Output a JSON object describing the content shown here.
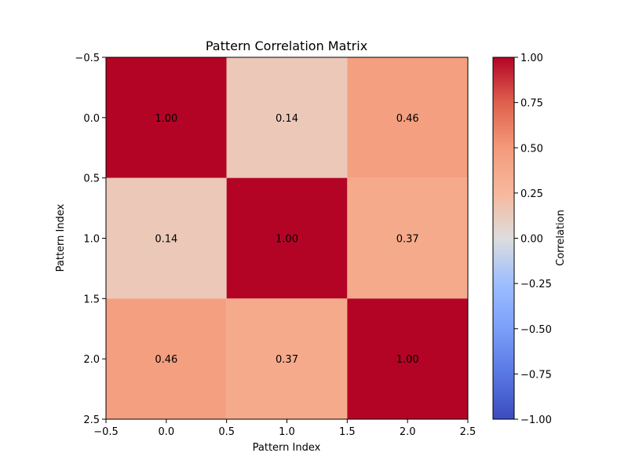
{
  "chart_data": {
    "type": "heatmap",
    "title": "Pattern Correlation Matrix",
    "xlabel": "Pattern Index",
    "ylabel": "Pattern Index",
    "colorbar_label": "Correlation",
    "colormap": "coolwarm",
    "vmin": -1.0,
    "vmax": 1.0,
    "matrix": [
      [
        1.0,
        0.14,
        0.46
      ],
      [
        0.14,
        1.0,
        0.37
      ],
      [
        0.46,
        0.37,
        1.0
      ]
    ],
    "cell_labels": [
      [
        "1.00",
        "0.14",
        "0.46"
      ],
      [
        "0.14",
        "1.00",
        "0.37"
      ],
      [
        "0.46",
        "0.37",
        "1.00"
      ]
    ],
    "xlim": [
      -0.5,
      2.5
    ],
    "ylim": [
      2.5,
      -0.5
    ],
    "xticks": [
      -0.5,
      0.0,
      0.5,
      1.0,
      1.5,
      2.0,
      2.5
    ],
    "xtick_labels": [
      "−0.5",
      "0.0",
      "0.5",
      "1.0",
      "1.5",
      "2.0",
      "2.5"
    ],
    "yticks": [
      -0.5,
      0.0,
      0.5,
      1.0,
      1.5,
      2.0,
      2.5
    ],
    "ytick_labels": [
      "−0.5",
      "0.0",
      "0.5",
      "1.0",
      "1.5",
      "2.0",
      "2.5"
    ],
    "colorbar_ticks": [
      1.0,
      0.75,
      0.5,
      0.25,
      0.0,
      -0.25,
      -0.5,
      -0.75,
      -1.0
    ],
    "colorbar_tick_labels": [
      "1.00",
      "0.75",
      "0.50",
      "0.25",
      "0.00",
      "−0.25",
      "−0.50",
      "−0.75",
      "−1.00"
    ],
    "grid": false
  }
}
